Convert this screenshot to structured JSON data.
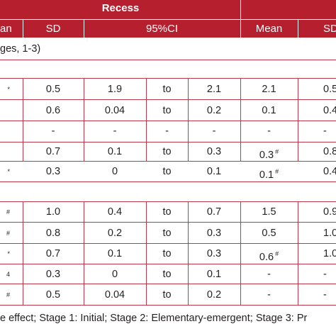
{
  "header": {
    "group_title": "Recess",
    "columns": [
      "an",
      "SD",
      "95%CI",
      "Mean",
      "SD"
    ]
  },
  "group_labels": [
    "ges, 1-3)"
  ],
  "rows_group1": [
    [
      "*",
      "0.5",
      "1.9",
      "to",
      "2.1",
      "2.1",
      "",
      "0.5"
    ],
    [
      "",
      "0.6",
      "0.04",
      "to",
      "0.2",
      "0.1",
      "",
      "0.4"
    ],
    [
      "",
      "-",
      "-",
      "-",
      "-",
      "-",
      "",
      "-"
    ],
    [
      "",
      "0.7",
      "0.1",
      "to",
      "0.3",
      "0.3",
      "#",
      "0.8"
    ],
    [
      "*",
      "0.3",
      "0",
      "to",
      "0.1",
      "0.1",
      "#",
      "0.4"
    ]
  ],
  "rows_group2": [
    [
      "#",
      "1.0",
      "0.4",
      "to",
      "0.7",
      "1.5",
      "",
      "0.9"
    ],
    [
      "#",
      "0.8",
      "0.2",
      "to",
      "0.3",
      "0.5",
      "",
      "1.0"
    ],
    [
      "*",
      "0.7",
      "0.1",
      "to",
      "0.3",
      "0.6",
      "#",
      "1.0"
    ],
    [
      "4",
      "0.3",
      "0",
      "to",
      "0.1",
      "-",
      "",
      "-"
    ],
    [
      "#",
      "0.5",
      "0.04",
      "to",
      "0.2",
      "-",
      "",
      "-"
    ]
  ],
  "footnote": "e effect; Stage 1: Initial; Stage 2: Elementary-emergent; Stage 3: Pr"
}
